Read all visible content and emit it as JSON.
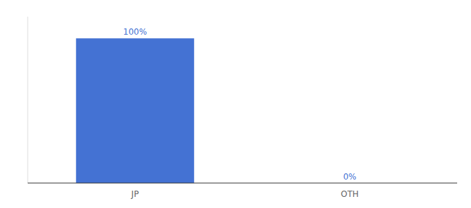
{
  "chart_data": {
    "type": "bar",
    "categories": [
      "JP",
      "OTH"
    ],
    "values": [
      100,
      0
    ],
    "value_labels": [
      "100%",
      "0%"
    ],
    "data_labels": true,
    "color": "#4472d3",
    "ylim": [
      0,
      115
    ],
    "tick_labels": "x",
    "grid": false
  }
}
